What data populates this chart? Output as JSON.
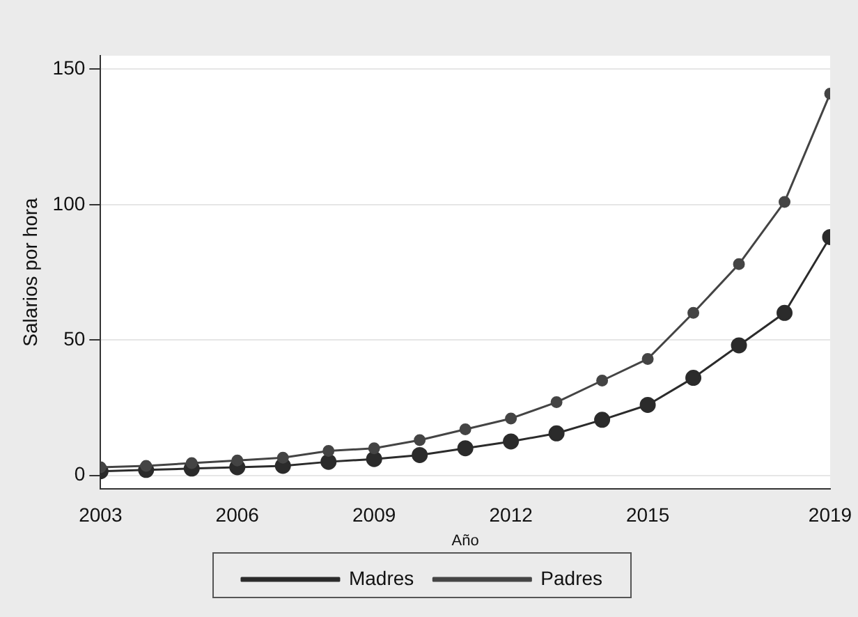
{
  "chart_data": {
    "type": "line",
    "xlabel": "Año",
    "ylabel": "Salarios por hora",
    "x": [
      2003,
      2004,
      2005,
      2006,
      2007,
      2008,
      2009,
      2010,
      2011,
      2012,
      2013,
      2014,
      2015,
      2016,
      2017,
      2018,
      2019
    ],
    "series": [
      {
        "name": "Madres",
        "color": "#2b2b2b",
        "values": [
          1.5,
          2,
          2.5,
          3,
          3.5,
          5,
          6,
          7.5,
          10,
          12.5,
          15.5,
          20.5,
          26,
          36,
          48,
          60,
          88
        ]
      },
      {
        "name": "Padres",
        "color": "#444444",
        "values": [
          3,
          3.5,
          4.5,
          5.5,
          6.5,
          9,
          10,
          13,
          17,
          21,
          27,
          35,
          43,
          60,
          78,
          101,
          141
        ]
      }
    ],
    "xlim": [
      2003,
      2019
    ],
    "xticks": [
      2003,
      2006,
      2009,
      2012,
      2015,
      2019
    ],
    "ylim": [
      -5,
      155
    ],
    "yticks": [
      0,
      50,
      100,
      150
    ],
    "grid": "y",
    "legend": "bottom",
    "marker": "circle",
    "line_style": "solid"
  }
}
